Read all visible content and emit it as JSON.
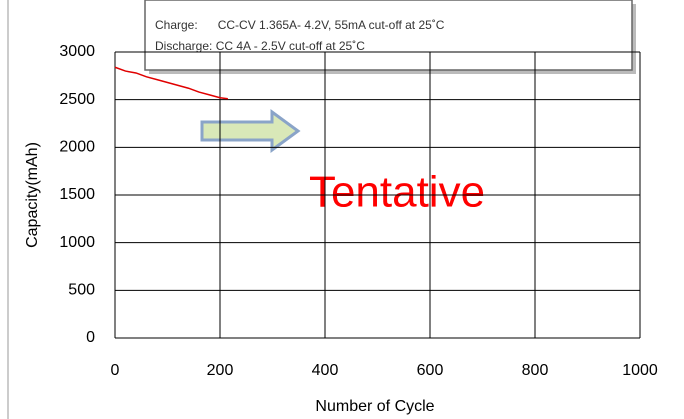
{
  "chart_data": {
    "type": "line",
    "annotations": [
      "Charge:      CC-CV 1.365A- 4.2V, 55mA cut-off at 25˚C",
      "Discharge: CC 4A - 2.5V cut-off at 25˚C",
      "Tentative"
    ],
    "x_label": "Number of Cycle",
    "y_label": "Capacity(mAh)",
    "x": [
      0,
      20,
      40,
      60,
      80,
      100,
      120,
      140,
      160,
      180,
      200,
      215
    ],
    "series": [
      {
        "name": "Capacity",
        "color": "#e00000",
        "values": [
          2840,
          2800,
          2780,
          2740,
          2710,
          2680,
          2650,
          2620,
          2580,
          2550,
          2520,
          2510
        ]
      }
    ],
    "xlim": [
      0,
      1000
    ],
    "xticks": [
      0,
      200,
      400,
      600,
      800,
      1000
    ],
    "ylim": [
      0,
      3000
    ],
    "yticks": [
      0,
      500,
      1000,
      1500,
      2000,
      2500,
      3000
    ],
    "grid": true
  }
}
